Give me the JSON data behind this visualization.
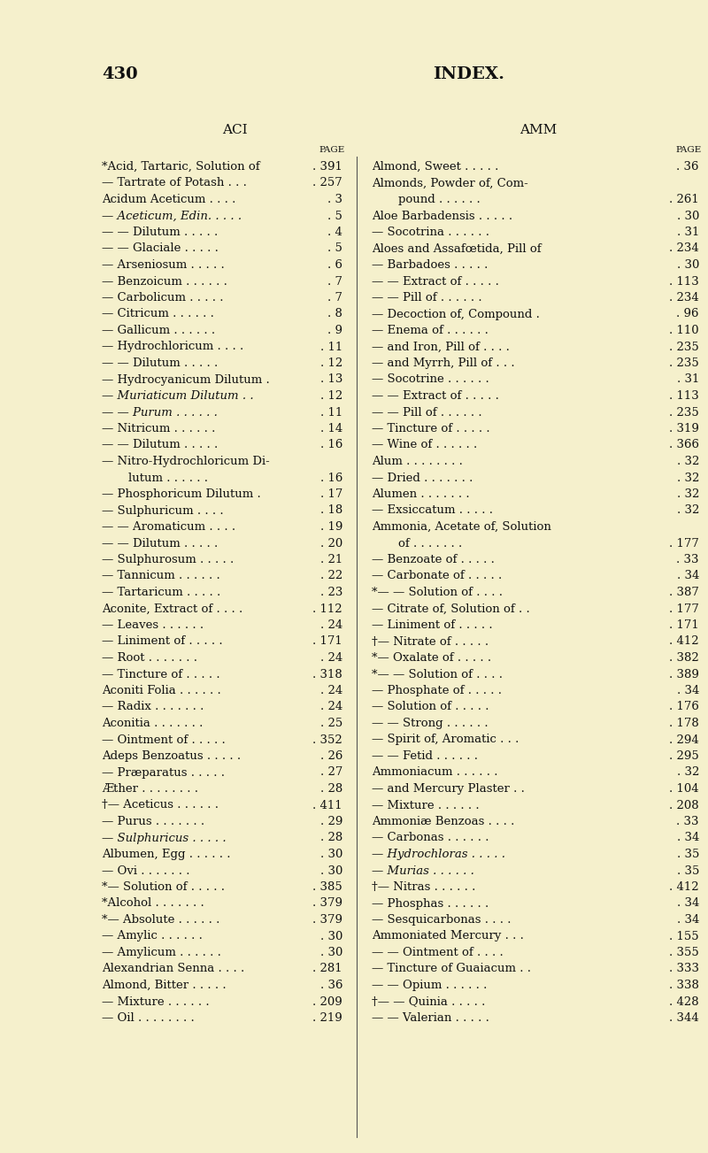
{
  "bg_color": "#f5f0cc",
  "page_num": "430",
  "title": "INDEX.",
  "col_header_left": "ACI",
  "col_header_right": "AMM",
  "left_entries": [
    {
      "text": "*Acid, Tartaric, Solution of",
      "dots": " . ",
      "num": "391",
      "indent": 0,
      "italic": false,
      "prefix_dot": true
    },
    {
      "text": "— Tartrate of Potash . . .",
      "dots": "",
      "num": "257",
      "indent": 0,
      "italic": false,
      "prefix_dot": true
    },
    {
      "text": "Acidum Aceticum . . . .",
      "dots": "",
      "num": "3",
      "indent": 0,
      "italic": false,
      "prefix_dot": true
    },
    {
      "text": "— Aceticum, Edin. . . . .",
      "dots": "",
      "num": "5",
      "indent": 0,
      "italic": true,
      "prefix_dot": true
    },
    {
      "text": "— — Dilutum . . . . .",
      "dots": "",
      "num": "4",
      "indent": 0,
      "italic": false,
      "prefix_dot": true
    },
    {
      "text": "— — Glaciale . . . . .",
      "dots": "",
      "num": "5",
      "indent": 0,
      "italic": false,
      "prefix_dot": true
    },
    {
      "text": "— Arseniosum . . . . .",
      "dots": "",
      "num": "6",
      "indent": 0,
      "italic": false,
      "prefix_dot": true
    },
    {
      "text": "— Benzoicum . . . . . .",
      "dots": "",
      "num": "7",
      "indent": 0,
      "italic": false,
      "prefix_dot": true
    },
    {
      "text": "— Carbolicum . . . . .",
      "dots": "",
      "num": "7",
      "indent": 0,
      "italic": false,
      "prefix_dot": true
    },
    {
      "text": "— Citricum . . . . . .",
      "dots": "",
      "num": "8",
      "indent": 0,
      "italic": false,
      "prefix_dot": true
    },
    {
      "text": "— Gallicum . . . . . .",
      "dots": "",
      "num": "9",
      "indent": 0,
      "italic": false,
      "prefix_dot": true
    },
    {
      "text": "— Hydrochloricum . . . .",
      "dots": "",
      "num": "11",
      "indent": 0,
      "italic": false,
      "prefix_dot": true
    },
    {
      "text": "— — Dilutum . . . . .",
      "dots": "",
      "num": "12",
      "indent": 0,
      "italic": false,
      "prefix_dot": true
    },
    {
      "text": "— Hydrocyanicum Dilutum .",
      "dots": "",
      "num": "13",
      "indent": 0,
      "italic": false,
      "prefix_dot": true
    },
    {
      "text": "— Muriaticum Dilutum . .",
      "dots": "",
      "num": "12",
      "indent": 0,
      "italic": true,
      "prefix_dot": true
    },
    {
      "text": "— — Purum . . . . . .",
      "dots": "",
      "num": "11",
      "indent": 0,
      "italic": true,
      "prefix_dot": true
    },
    {
      "text": "— Nitricum . . . . . .",
      "dots": "",
      "num": "14",
      "indent": 0,
      "italic": false,
      "prefix_dot": true
    },
    {
      "text": "— — Dilutum . . . . .",
      "dots": "",
      "num": "16",
      "indent": 0,
      "italic": false,
      "prefix_dot": true
    },
    {
      "text": "— Nitro-Hydrochloricum Di-",
      "dots": "",
      "num": "",
      "indent": 0,
      "italic": false,
      "prefix_dot": false
    },
    {
      "text": "lutum . . . . . .",
      "dots": "",
      "num": "16",
      "indent": 1,
      "italic": false,
      "prefix_dot": true
    },
    {
      "text": "— Phosphoricum Dilutum .",
      "dots": "",
      "num": "17",
      "indent": 0,
      "italic": false,
      "prefix_dot": true
    },
    {
      "text": "— Sulphuricum . . . .",
      "dots": "",
      "num": "18",
      "indent": 0,
      "italic": false,
      "prefix_dot": true
    },
    {
      "text": "— — Aromaticum . . . .",
      "dots": "",
      "num": "19",
      "indent": 0,
      "italic": false,
      "prefix_dot": true
    },
    {
      "text": "— — Dilutum . . . . .",
      "dots": "",
      "num": "20",
      "indent": 0,
      "italic": false,
      "prefix_dot": true
    },
    {
      "text": "— Sulphurosum . . . . .",
      "dots": "",
      "num": "21",
      "indent": 0,
      "italic": false,
      "prefix_dot": true
    },
    {
      "text": "— Tannicum . . . . . .",
      "dots": "",
      "num": "22",
      "indent": 0,
      "italic": false,
      "prefix_dot": true
    },
    {
      "text": "— Tartaricum . . . . .",
      "dots": "",
      "num": "23",
      "indent": 0,
      "italic": false,
      "prefix_dot": true
    },
    {
      "text": "Aconite, Extract of . . . .",
      "dots": "",
      "num": "112",
      "indent": 0,
      "italic": false,
      "prefix_dot": true
    },
    {
      "text": "— Leaves . . . . . .",
      "dots": "",
      "num": "24",
      "indent": 0,
      "italic": false,
      "prefix_dot": true
    },
    {
      "text": "— Liniment of . . . . .",
      "dots": "",
      "num": "171",
      "indent": 0,
      "italic": false,
      "prefix_dot": true
    },
    {
      "text": "— Root . . . . . . .",
      "dots": "",
      "num": "24",
      "indent": 0,
      "italic": false,
      "prefix_dot": true
    },
    {
      "text": "— Tincture of . . . . .",
      "dots": "",
      "num": "318",
      "indent": 0,
      "italic": false,
      "prefix_dot": true
    },
    {
      "text": "Aconiti Folia . . . . . .",
      "dots": "",
      "num": "24",
      "indent": 0,
      "italic": false,
      "prefix_dot": true
    },
    {
      "text": "— Radix . . . . . . .",
      "dots": "",
      "num": "24",
      "indent": 0,
      "italic": false,
      "prefix_dot": true
    },
    {
      "text": "Aconitia . . . . . . .",
      "dots": "",
      "num": "25",
      "indent": 0,
      "italic": false,
      "prefix_dot": true
    },
    {
      "text": "— Ointment of . . . . .",
      "dots": "",
      "num": "352",
      "indent": 0,
      "italic": false,
      "prefix_dot": true
    },
    {
      "text": "Adeps Benzoatus . . . . .",
      "dots": "",
      "num": "26",
      "indent": 0,
      "italic": false,
      "prefix_dot": true
    },
    {
      "text": "— Præparatus . . . . .",
      "dots": "",
      "num": "27",
      "indent": 0,
      "italic": false,
      "prefix_dot": true
    },
    {
      "text": "Æther . . . . . . . .",
      "dots": "",
      "num": "28",
      "indent": 0,
      "italic": false,
      "prefix_dot": true
    },
    {
      "text": "†— Aceticus . . . . . .",
      "dots": "",
      "num": "411",
      "indent": 0,
      "italic": false,
      "prefix_dot": true
    },
    {
      "text": "— Purus . . . . . . .",
      "dots": "",
      "num": "29",
      "indent": 0,
      "italic": false,
      "prefix_dot": true
    },
    {
      "text": "— Sulphuricus . . . . .",
      "dots": "",
      "num": "28",
      "indent": 0,
      "italic": true,
      "prefix_dot": true
    },
    {
      "text": "Albumen, Egg . . . . . .",
      "dots": "",
      "num": "30",
      "indent": 0,
      "italic": false,
      "prefix_dot": true
    },
    {
      "text": "— Ovi . . . . . . .",
      "dots": "",
      "num": "30",
      "indent": 0,
      "italic": false,
      "prefix_dot": true
    },
    {
      "text": "*— Solution of . . . . .",
      "dots": "",
      "num": "385",
      "indent": 0,
      "italic": false,
      "prefix_dot": true
    },
    {
      "text": "*Alcohol . . . . . . .",
      "dots": "",
      "num": "379",
      "indent": 0,
      "italic": false,
      "prefix_dot": true
    },
    {
      "text": "*— Absolute . . . . . .",
      "dots": "",
      "num": "379",
      "indent": 0,
      "italic": false,
      "prefix_dot": true
    },
    {
      "text": "— Amylic . . . . . .",
      "dots": "",
      "num": "30",
      "indent": 0,
      "italic": false,
      "prefix_dot": true
    },
    {
      "text": "— Amylicum . . . . . .",
      "dots": "",
      "num": "30",
      "indent": 0,
      "italic": false,
      "prefix_dot": true
    },
    {
      "text": "Alexandrian Senna . . . .",
      "dots": "",
      "num": "281",
      "indent": 0,
      "italic": false,
      "prefix_dot": true
    },
    {
      "text": "Almond, Bitter . . . . .",
      "dots": "",
      "num": "36",
      "indent": 0,
      "italic": false,
      "prefix_dot": true
    },
    {
      "text": "— Mixture . . . . . .",
      "dots": "",
      "num": "209",
      "indent": 0,
      "italic": false,
      "prefix_dot": true
    },
    {
      "text": "— Oil . . . . . . . .",
      "dots": "",
      "num": "219",
      "indent": 0,
      "italic": false,
      "prefix_dot": true
    }
  ],
  "right_entries": [
    {
      "text": "Almond, Sweet . . . . .",
      "dots": "",
      "num": "36",
      "indent": 0,
      "italic": false,
      "prefix_dot": true
    },
    {
      "text": "Almonds, Powder of, Com-",
      "dots": "",
      "num": "",
      "indent": 0,
      "italic": false,
      "prefix_dot": false
    },
    {
      "text": "pound . . . . . .",
      "dots": "",
      "num": "261",
      "indent": 1,
      "italic": false,
      "prefix_dot": true
    },
    {
      "text": "Aloe Barbadensis . . . . .",
      "dots": "",
      "num": "30",
      "indent": 0,
      "italic": false,
      "prefix_dot": true
    },
    {
      "text": "— Socotrina . . . . . .",
      "dots": "",
      "num": "31",
      "indent": 0,
      "italic": false,
      "prefix_dot": true
    },
    {
      "text": "Aloes and Assafœtida, Pill of",
      "dots": "",
      "num": "234",
      "indent": 0,
      "italic": false,
      "prefix_dot": true
    },
    {
      "text": "— Barbadoes . . . . .",
      "dots": "",
      "num": "30",
      "indent": 0,
      "italic": false,
      "prefix_dot": true
    },
    {
      "text": "— — Extract of . . . . .",
      "dots": "",
      "num": "113",
      "indent": 0,
      "italic": false,
      "prefix_dot": true
    },
    {
      "text": "— — Pill of . . . . . .",
      "dots": "",
      "num": "234",
      "indent": 0,
      "italic": false,
      "prefix_dot": true
    },
    {
      "text": "— Decoction of, Compound .",
      "dots": "",
      "num": "96",
      "indent": 0,
      "italic": false,
      "prefix_dot": true
    },
    {
      "text": "— Enema of . . . . . .",
      "dots": "",
      "num": "110",
      "indent": 0,
      "italic": false,
      "prefix_dot": true
    },
    {
      "text": "— and Iron, Pill of . . . .",
      "dots": "",
      "num": "235",
      "indent": 0,
      "italic": false,
      "prefix_dot": true
    },
    {
      "text": "— and Myrrh, Pill of . . .",
      "dots": "",
      "num": "235",
      "indent": 0,
      "italic": false,
      "prefix_dot": true
    },
    {
      "text": "— Socotrine . . . . . .",
      "dots": "",
      "num": "31",
      "indent": 0,
      "italic": false,
      "prefix_dot": true
    },
    {
      "text": "— — Extract of . . . . .",
      "dots": "",
      "num": "113",
      "indent": 0,
      "italic": false,
      "prefix_dot": true
    },
    {
      "text": "— — Pill of . . . . . .",
      "dots": "",
      "num": "235",
      "indent": 0,
      "italic": false,
      "prefix_dot": true
    },
    {
      "text": "— Tincture of . . . . .",
      "dots": "",
      "num": "319",
      "indent": 0,
      "italic": false,
      "prefix_dot": true
    },
    {
      "text": "— Wine of . . . . . .",
      "dots": "",
      "num": "366",
      "indent": 0,
      "italic": false,
      "prefix_dot": true
    },
    {
      "text": "Alum . . . . . . . .",
      "dots": "",
      "num": "32",
      "indent": 0,
      "italic": false,
      "prefix_dot": true
    },
    {
      "text": "— Dried . . . . . . .",
      "dots": "",
      "num": "32",
      "indent": 0,
      "italic": false,
      "prefix_dot": true
    },
    {
      "text": "Alumen . . . . . . .",
      "dots": "",
      "num": "32",
      "indent": 0,
      "italic": false,
      "prefix_dot": true
    },
    {
      "text": "— Exsiccatum . . . . .",
      "dots": "",
      "num": "32",
      "indent": 0,
      "italic": false,
      "prefix_dot": true
    },
    {
      "text": "Ammonia, Acetate of, Solution",
      "dots": "",
      "num": "",
      "indent": 0,
      "italic": false,
      "prefix_dot": false
    },
    {
      "text": "of . . . . . . .",
      "dots": "",
      "num": "177",
      "indent": 1,
      "italic": false,
      "prefix_dot": true
    },
    {
      "text": "— Benzoate of . . . . .",
      "dots": "",
      "num": "33",
      "indent": 0,
      "italic": false,
      "prefix_dot": true
    },
    {
      "text": "— Carbonate of . . . . .",
      "dots": "",
      "num": "34",
      "indent": 0,
      "italic": false,
      "prefix_dot": true
    },
    {
      "text": "*— — Solution of . . . .",
      "dots": "",
      "num": "387",
      "indent": 0,
      "italic": false,
      "prefix_dot": true
    },
    {
      "text": "— Citrate of, Solution of . .",
      "dots": "",
      "num": "177",
      "indent": 0,
      "italic": false,
      "prefix_dot": true
    },
    {
      "text": "— Liniment of . . . . .",
      "dots": "",
      "num": "171",
      "indent": 0,
      "italic": false,
      "prefix_dot": true
    },
    {
      "text": "†— Nitrate of . . . . .",
      "dots": "",
      "num": "412",
      "indent": 0,
      "italic": false,
      "prefix_dot": true
    },
    {
      "text": "*— Oxalate of . . . . .",
      "dots": "",
      "num": "382",
      "indent": 0,
      "italic": false,
      "prefix_dot": true
    },
    {
      "text": "*— — Solution of . . . .",
      "dots": "",
      "num": "389",
      "indent": 0,
      "italic": false,
      "prefix_dot": true
    },
    {
      "text": "— Phosphate of . . . . .",
      "dots": "",
      "num": "34",
      "indent": 0,
      "italic": false,
      "prefix_dot": true
    },
    {
      "text": "— Solution of . . . . .",
      "dots": "",
      "num": "176",
      "indent": 0,
      "italic": false,
      "prefix_dot": true
    },
    {
      "text": "— — Strong . . . . . .",
      "dots": "",
      "num": "178",
      "indent": 0,
      "italic": false,
      "prefix_dot": true
    },
    {
      "text": "— Spirit of, Aromatic . . .",
      "dots": "",
      "num": "294",
      "indent": 0,
      "italic": false,
      "prefix_dot": true
    },
    {
      "text": "— — Fetid . . . . . .",
      "dots": "",
      "num": "295",
      "indent": 0,
      "italic": false,
      "prefix_dot": true
    },
    {
      "text": "Ammoniacum . . . . . .",
      "dots": "",
      "num": "32",
      "indent": 0,
      "italic": false,
      "prefix_dot": true
    },
    {
      "text": "— and Mercury Plaster . .",
      "dots": "",
      "num": "104",
      "indent": 0,
      "italic": false,
      "prefix_dot": true
    },
    {
      "text": "— Mixture . . . . . .",
      "dots": "",
      "num": "208",
      "indent": 0,
      "italic": false,
      "prefix_dot": true
    },
    {
      "text": "Ammoniæ Benzoas . . . .",
      "dots": "",
      "num": "33",
      "indent": 0,
      "italic": false,
      "prefix_dot": true
    },
    {
      "text": "— Carbonas . . . . . .",
      "dots": "",
      "num": "34",
      "indent": 0,
      "italic": false,
      "prefix_dot": true
    },
    {
      "text": "— Hydrochloras . . . . .",
      "dots": "",
      "num": "35",
      "indent": 0,
      "italic": true,
      "prefix_dot": true
    },
    {
      "text": "— Murias . . . . . .",
      "dots": "",
      "num": "35",
      "indent": 0,
      "italic": true,
      "prefix_dot": true
    },
    {
      "text": "†— Nitras . . . . . .",
      "dots": "",
      "num": "412",
      "indent": 0,
      "italic": false,
      "prefix_dot": true
    },
    {
      "text": "— Phosphas . . . . . .",
      "dots": "",
      "num": "34",
      "indent": 0,
      "italic": false,
      "prefix_dot": true
    },
    {
      "text": "— Sesquicarbonas . . . .",
      "dots": "",
      "num": "34",
      "indent": 0,
      "italic": false,
      "prefix_dot": true
    },
    {
      "text": "Ammoniated Mercury . . .",
      "dots": "",
      "num": "155",
      "indent": 0,
      "italic": false,
      "prefix_dot": true
    },
    {
      "text": "— — Ointment of . . . .",
      "dots": "",
      "num": "355",
      "indent": 0,
      "italic": false,
      "prefix_dot": true
    },
    {
      "text": "— Tincture of Guaiacum . .",
      "dots": "",
      "num": "333",
      "indent": 0,
      "italic": false,
      "prefix_dot": true
    },
    {
      "text": "— — Opium . . . . . .",
      "dots": "",
      "num": "338",
      "indent": 0,
      "italic": false,
      "prefix_dot": true
    },
    {
      "text": "†— — Quinia . . . . .",
      "dots": "",
      "num": "428",
      "indent": 0,
      "italic": false,
      "prefix_dot": true
    },
    {
      "text": "— — Valerian . . . . .",
      "dots": "",
      "num": "344",
      "indent": 0,
      "italic": false,
      "prefix_dot": true
    }
  ]
}
